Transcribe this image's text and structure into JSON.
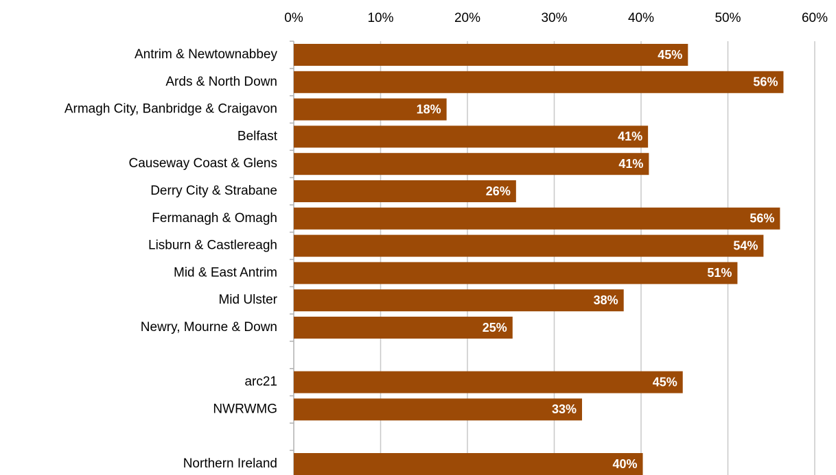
{
  "chart_data": {
    "type": "bar",
    "orientation": "horizontal",
    "categories": [
      "Antrim & Newtownabbey",
      "Ards & North Down",
      "Armagh City, Banbridge & Craigavon",
      "Belfast",
      "Causeway Coast & Glens",
      "Derry City & Strabane",
      "Fermanagh & Omagh",
      "Lisburn & Castlereagh",
      "Mid & East Antrim",
      "Mid Ulster",
      "Newry, Mourne & Down",
      null,
      "arc21",
      "NWRWMG",
      null,
      "Northern Ireland"
    ],
    "values": [
      45.4,
      56.4,
      17.6,
      40.8,
      40.9,
      25.6,
      56.0,
      54.1,
      51.1,
      38.0,
      25.2,
      null,
      44.8,
      33.2,
      null,
      40.2
    ],
    "value_labels": [
      "45%",
      "56%",
      "18%",
      "41%",
      "41%",
      "26%",
      "56%",
      "54%",
      "51%",
      "38%",
      "25%",
      null,
      "45%",
      "33%",
      null,
      "40%"
    ],
    "color": "#9c4a06",
    "xlim": [
      0,
      60
    ],
    "xticks": [
      {
        "value": 0,
        "label": "0%"
      },
      {
        "value": 10,
        "label": "10%"
      },
      {
        "value": 20,
        "label": "20%"
      },
      {
        "value": 30,
        "label": "30%"
      },
      {
        "value": 40,
        "label": "40%"
      },
      {
        "value": 50,
        "label": "50%"
      },
      {
        "value": 60,
        "label": "60%"
      }
    ],
    "grid": true
  }
}
